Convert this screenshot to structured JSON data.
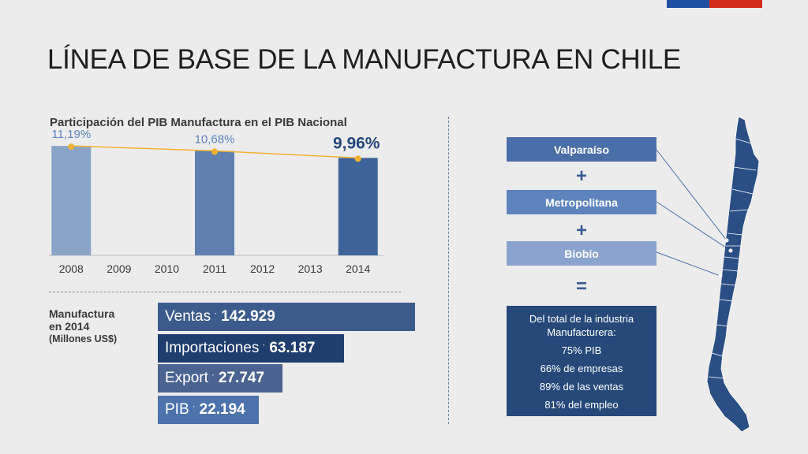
{
  "title": "LÍNEA DE BASE DE LA MANUFACTURA EN CHILE",
  "colors": {
    "flag_blue": "#1f4fa0",
    "flag_red": "#d52b1e",
    "bar_2008": "#8aa4c8",
    "bar_2011": "#5f80b0",
    "bar_2014": "#3d6399",
    "line": "#f2b134",
    "region_valparaiso": "#4a6fa8",
    "region_metropolitana": "#5f84bd",
    "region_biobio": "#8aa4cf",
    "summary_bg": "#26497a",
    "map_fill": "#2b4f85"
  },
  "chart_data": {
    "type": "bar",
    "title": "Participación del PIB Manufactura en el PIB Nacional",
    "categories": [
      "2008",
      "2009",
      "2010",
      "2011",
      "2012",
      "2013",
      "2014"
    ],
    "values": [
      11.19,
      null,
      null,
      10.68,
      null,
      null,
      9.96
    ],
    "data_labels": [
      "11,19%",
      "",
      "",
      "10,68%",
      "",
      "",
      "9,96%"
    ],
    "overlay_line": {
      "type": "line",
      "values": [
        11.19,
        null,
        null,
        10.68,
        null,
        null,
        9.96
      ]
    },
    "ylim": [
      0,
      11.6
    ],
    "grid": false,
    "legend": "none"
  },
  "manufactura": {
    "label_line1": "Manufactura",
    "label_line2": "en 2014",
    "label_units": "(Millones US$)",
    "bars": [
      {
        "name": "Ventas",
        "sep": "·",
        "value": "142.929",
        "amount": 142929,
        "color": "#3b5b8c"
      },
      {
        "name": "Importaciones",
        "sep": "·",
        "value": "63.187",
        "amount": 63187,
        "color": "#1f3e6e"
      },
      {
        "name": "Export",
        "sep": "·",
        "value": "27.747",
        "amount": 27747,
        "color": "#4a6390"
      },
      {
        "name": "PIB",
        "sep": "·",
        "value": "22.194",
        "amount": 22194,
        "color": "#4d73ad"
      }
    ]
  },
  "regions": {
    "valparaiso": "Valparaíso",
    "plus1": "+",
    "metropolitana": "Metropolitana",
    "plus2": "+",
    "biobio": "Biobío",
    "equals": "="
  },
  "summary": {
    "head": "Del total de la industria Manufacturera:",
    "pib": "75% PIB",
    "empresas": "66% de empresas",
    "ventas": "89% de las ventas",
    "empleo": "81% del empleo"
  }
}
